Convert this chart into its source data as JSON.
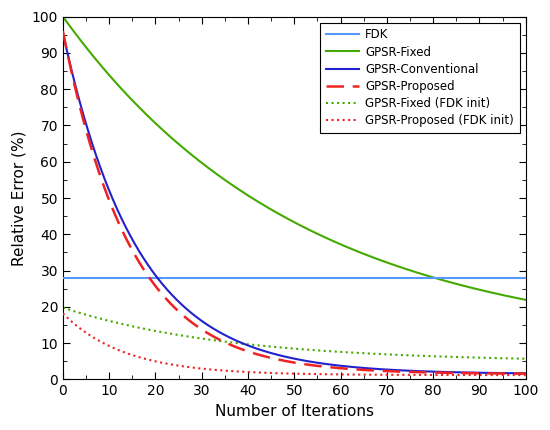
{
  "title": "",
  "xlabel": "Number of Iterations",
  "ylabel": "Relative Error (%)",
  "xlim": [
    0,
    100
  ],
  "ylim": [
    0,
    100
  ],
  "fdk_level": 28.0,
  "fdk_color": "#5599FF",
  "gpsr_fixed_color": "#44AA00",
  "gpsr_conv_color": "#2222CC",
  "gpsr_prop_color": "#EE2222",
  "gpsr_fixed_fdk_color": "#44AA00",
  "gpsr_prop_fdk_color": "#EE2222",
  "A_fixed": 91.0,
  "C_fixed": 9.0,
  "k_fixed": 0.0195,
  "A_conv": 94.0,
  "C_conv": 1.5,
  "k_conv": 0.062,
  "A_prop": 94.5,
  "C_prop": 1.5,
  "k_prop": 0.068,
  "A_ff": 15.0,
  "C_ff": 4.8,
  "k_ff": 0.028,
  "A_pf": 17.0,
  "C_pf": 1.2,
  "k_pf": 0.075,
  "legend_labels": [
    "FDK",
    "GPSR-Fixed",
    "GPSR-Conventional",
    "GPSR-Proposed",
    "GPSR-Fixed (FDK init)",
    "GPSR-Proposed (FDK init)"
  ],
  "background_color": "#FFFFFF"
}
